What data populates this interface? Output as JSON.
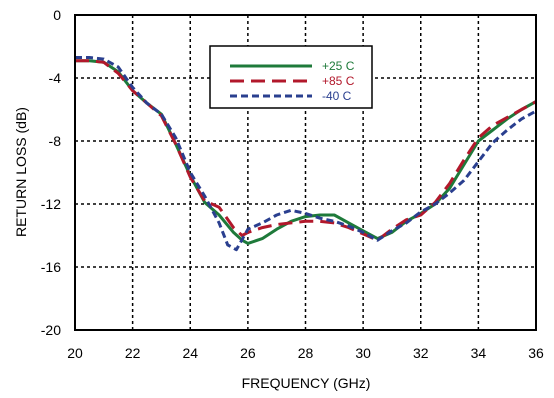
{
  "chart_data": {
    "type": "line",
    "xlabel": "FREQUENCY (GHz)",
    "ylabel": "RETURN LOSS (dB)",
    "xlim": [
      20,
      36
    ],
    "ylim": [
      -20,
      0
    ],
    "x_ticks": [
      20,
      22,
      24,
      26,
      28,
      30,
      32,
      34,
      36
    ],
    "y_ticks": [
      0,
      -4,
      -8,
      -12,
      -16,
      -20
    ],
    "x_tick_labels": [
      "20",
      "22",
      "24",
      "26",
      "28",
      "30",
      "32",
      "34",
      "36"
    ],
    "y_tick_labels": [
      "0",
      "-4",
      "-8",
      "-12",
      "-16",
      "-20"
    ],
    "grid": true,
    "legend_position": "top-center",
    "series": [
      {
        "name": "+25 C",
        "color": "#1e7a3a",
        "dash": "solid",
        "x": [
          20,
          20.5,
          21,
          21.5,
          22,
          22.5,
          23,
          23.5,
          24,
          24.5,
          25,
          25.5,
          25.8,
          26,
          26.5,
          27,
          27.5,
          28,
          28.5,
          29,
          29.5,
          30,
          30.5,
          31,
          31.5,
          32,
          32.5,
          33,
          33.5,
          34,
          34.5,
          35,
          35.5,
          36
        ],
        "y": [
          -2.9,
          -2.9,
          -3.0,
          -3.6,
          -4.8,
          -5.6,
          -6.3,
          -8.2,
          -10.2,
          -11.9,
          -12.7,
          -13.8,
          -14.3,
          -14.5,
          -14.2,
          -13.6,
          -13.1,
          -12.8,
          -12.7,
          -12.7,
          -13.2,
          -13.7,
          -14.2,
          -13.8,
          -13.1,
          -12.6,
          -12.0,
          -11.0,
          -9.5,
          -8.0,
          -7.3,
          -6.6,
          -6.0,
          -5.5
        ]
      },
      {
        "name": "+85 C",
        "color": "#b2182b",
        "dash": "long",
        "x": [
          20,
          20.5,
          21,
          21.5,
          22,
          22.5,
          23,
          23.5,
          24,
          24.5,
          25,
          25.5,
          25.8,
          26,
          26.5,
          27,
          27.5,
          28,
          28.5,
          29,
          29.5,
          30,
          30.5,
          31,
          31.5,
          32,
          32.5,
          33,
          33.5,
          34,
          34.5,
          35,
          35.5,
          36
        ],
        "y": [
          -2.9,
          -2.9,
          -3.0,
          -3.7,
          -4.8,
          -5.6,
          -6.4,
          -8.2,
          -10.3,
          -11.8,
          -12.2,
          -13.5,
          -14.0,
          -13.8,
          -13.5,
          -13.3,
          -13.2,
          -13.1,
          -13.1,
          -13.2,
          -13.5,
          -13.9,
          -14.3,
          -13.6,
          -13.0,
          -12.7,
          -11.9,
          -10.7,
          -9.2,
          -7.8,
          -7.0,
          -6.5,
          -6.0,
          -5.5
        ]
      },
      {
        "name": "-40 C",
        "color": "#2a3f8f",
        "dash": "short",
        "x": [
          20,
          20.5,
          21,
          21.5,
          22,
          22.5,
          23,
          23.5,
          24,
          24.5,
          25,
          25.3,
          25.6,
          26,
          26.5,
          27,
          27.5,
          28,
          28.5,
          29,
          29.5,
          30,
          30.5,
          31,
          31.5,
          32,
          32.5,
          33,
          33.5,
          34,
          34.5,
          35,
          35.5,
          36
        ],
        "y": [
          -2.7,
          -2.7,
          -2.8,
          -3.3,
          -4.6,
          -5.6,
          -6.3,
          -7.8,
          -10.0,
          -11.5,
          -13.2,
          -14.6,
          -14.9,
          -13.6,
          -13.2,
          -12.7,
          -12.4,
          -12.6,
          -12.9,
          -13.1,
          -13.4,
          -13.8,
          -14.3,
          -13.7,
          -13.2,
          -12.5,
          -12.0,
          -11.3,
          -10.5,
          -9.3,
          -8.1,
          -7.3,
          -6.6,
          -6.1
        ]
      }
    ]
  }
}
